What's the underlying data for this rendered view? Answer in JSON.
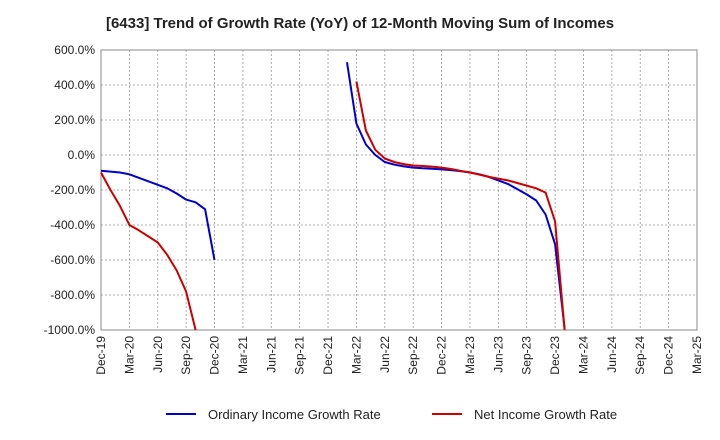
{
  "chart_data": {
    "type": "line",
    "title": "[6433]  Trend of Growth Rate (YoY) of 12-Month Moving Sum of Incomes",
    "xlabel": "",
    "ylabel": "",
    "ylim": [
      -1000,
      600
    ],
    "y_ticks": [
      "600.0%",
      "400.0%",
      "200.0%",
      "0.0%",
      "-200.0%",
      "-400.0%",
      "-600.0%",
      "-800.0%",
      "-1000.0%"
    ],
    "y_tick_values": [
      600,
      400,
      200,
      0,
      -200,
      -400,
      -600,
      -800,
      -1000
    ],
    "x_ticks": [
      "Dec-19",
      "Mar-20",
      "Jun-20",
      "Sep-20",
      "Dec-20",
      "Mar-21",
      "Jun-21",
      "Sep-21",
      "Dec-21",
      "Mar-22",
      "Jun-22",
      "Sep-22",
      "Dec-22",
      "Mar-23",
      "Jun-23",
      "Sep-23",
      "Dec-23",
      "Mar-24",
      "Jun-24",
      "Sep-24",
      "Dec-24",
      "Mar-25"
    ],
    "grid": true,
    "legend_position": "bottom",
    "series": [
      {
        "name": "Ordinary Income Growth Rate",
        "color": "#0000cc",
        "points": [
          [
            "Dec-19",
            -90
          ],
          [
            "Jan-20",
            -95
          ],
          [
            "Feb-20",
            -100
          ],
          [
            "Mar-20",
            -110
          ],
          [
            "Apr-20",
            -130
          ],
          [
            "May-20",
            -150
          ],
          [
            "Jun-20",
            -170
          ],
          [
            "Jul-20",
            -190
          ],
          [
            "Aug-20",
            -220
          ],
          [
            "Sep-20",
            -255
          ],
          [
            "Oct-20",
            -270
          ],
          [
            "Nov-20",
            -310
          ],
          [
            "Dec-20",
            -600
          ],
          null,
          [
            "Feb-22",
            530
          ],
          [
            "Mar-22",
            180
          ],
          [
            "Apr-22",
            60
          ],
          [
            "May-22",
            0
          ],
          [
            "Jun-22",
            -40
          ],
          [
            "Jul-22",
            -55
          ],
          [
            "Aug-22",
            -65
          ],
          [
            "Sep-22",
            -72
          ],
          [
            "Oct-22",
            -76
          ],
          [
            "Nov-22",
            -78
          ],
          [
            "Dec-22",
            -82
          ],
          [
            "Jan-23",
            -86
          ],
          [
            "Feb-23",
            -92
          ],
          [
            "Mar-23",
            -100
          ],
          [
            "Apr-23",
            -110
          ],
          [
            "May-23",
            -125
          ],
          [
            "Jun-23",
            -145
          ],
          [
            "Jul-23",
            -165
          ],
          [
            "Aug-23",
            -195
          ],
          [
            "Sep-23",
            -225
          ],
          [
            "Oct-23",
            -260
          ],
          [
            "Nov-23",
            -340
          ],
          [
            "Dec-23",
            -510
          ],
          [
            "Jan-24",
            -990
          ]
        ]
      },
      {
        "name": "Net Income Growth Rate",
        "color": "#cc0000",
        "points": [
          [
            "Dec-19",
            -100
          ],
          [
            "Jan-20",
            -200
          ],
          [
            "Feb-20",
            -290
          ],
          [
            "Mar-20",
            -400
          ],
          [
            "Apr-20",
            -430
          ],
          [
            "May-20",
            -465
          ],
          [
            "Jun-20",
            -500
          ],
          [
            "Jul-20",
            -570
          ],
          [
            "Aug-20",
            -660
          ],
          [
            "Sep-20",
            -780
          ],
          [
            "Oct-20",
            -1000
          ],
          null,
          [
            "Mar-22",
            420
          ],
          [
            "Apr-22",
            140
          ],
          [
            "May-22",
            30
          ],
          [
            "Jun-22",
            -20
          ],
          [
            "Jul-22",
            -40
          ],
          [
            "Aug-22",
            -52
          ],
          [
            "Sep-22",
            -60
          ],
          [
            "Oct-22",
            -63
          ],
          [
            "Nov-22",
            -66
          ],
          [
            "Dec-22",
            -72
          ],
          [
            "Jan-23",
            -80
          ],
          [
            "Feb-23",
            -90
          ],
          [
            "Mar-23",
            -100
          ],
          [
            "Apr-23",
            -112
          ],
          [
            "May-23",
            -125
          ],
          [
            "Jun-23",
            -135
          ],
          [
            "Jul-23",
            -145
          ],
          [
            "Aug-23",
            -160
          ],
          [
            "Sep-23",
            -175
          ],
          [
            "Oct-23",
            -190
          ],
          [
            "Nov-23",
            -215
          ],
          [
            "Dec-23",
            -380
          ],
          [
            "Jan-24",
            -1000
          ]
        ]
      }
    ]
  }
}
